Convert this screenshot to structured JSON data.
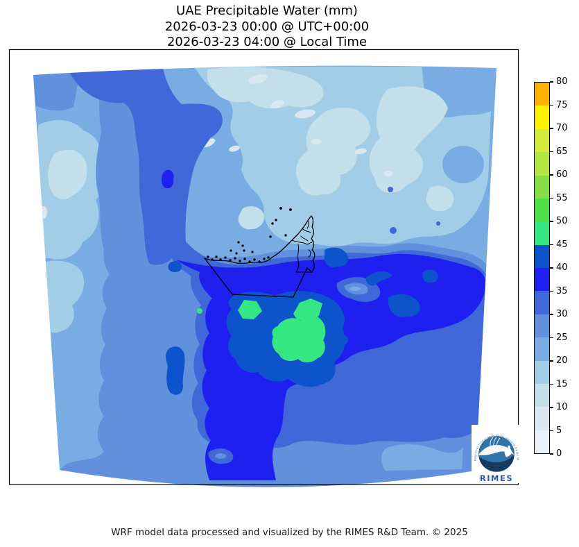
{
  "title": {
    "line1": "UAE Precipitable Water (mm)",
    "line2": "2026-03-23 00:00 @ UTC+00:00",
    "line3": "2026-03-23 04:00 @ Local Time"
  },
  "footer": {
    "caption": "WRF model data processed and visualized by the RIMES R&D Team. © 2025"
  },
  "logo": {
    "arc_text": "Regional Integrated Multi-Hazard Early Warning System",
    "name": "RIMES"
  },
  "chart_data": {
    "type": "heatmap",
    "subtype": "filled-contour-map",
    "title": "UAE Precipitable Water (mm)",
    "variable": "Precipitable Water",
    "units": "mm",
    "valid_utc": "2026-03-23 00:00 @ UTC+00:00",
    "valid_local": "2026-03-23 04:00 @ Local Time",
    "legend_position": "right",
    "colorbar": {
      "min": 0,
      "max": 80,
      "step": 5,
      "ticks": [
        0,
        5,
        10,
        15,
        20,
        25,
        30,
        35,
        40,
        45,
        50,
        55,
        60,
        65,
        70,
        75,
        80
      ],
      "levels": [
        {
          "range": "0-5",
          "color": "#EAF2F7"
        },
        {
          "range": "5-10",
          "color": "#D9E8F1"
        },
        {
          "range": "10-15",
          "color": "#C3DFE9"
        },
        {
          "range": "15-20",
          "color": "#A2CDE6"
        },
        {
          "range": "20-25",
          "color": "#7AACE4"
        },
        {
          "range": "25-30",
          "color": "#6190DC"
        },
        {
          "range": "30-35",
          "color": "#4168D8"
        },
        {
          "range": "35-40",
          "color": "#1F1FF0"
        },
        {
          "range": "40-45",
          "color": "#0C53CC"
        },
        {
          "range": "45-50",
          "color": "#35E783"
        },
        {
          "range": "50-55",
          "color": "#4FE04A"
        },
        {
          "range": "55-60",
          "color": "#87DF46"
        },
        {
          "range": "60-65",
          "color": "#B2E743"
        },
        {
          "range": "65-70",
          "color": "#D4EC3E"
        },
        {
          "range": "70-75",
          "color": "#FFF200"
        },
        {
          "range": "75-80",
          "color": "#FFB000"
        }
      ]
    },
    "map_features": {
      "outline": "United Arab Emirates coastline and land border",
      "regions": [
        {
          "area": "north (Persian Gulf / Iran coast)",
          "value_mm": "10-20"
        },
        {
          "area": "northwest corner band",
          "value_mm": "20-35"
        },
        {
          "area": "west-central vertical band",
          "value_mm": "25-35"
        },
        {
          "area": "UAE coast and central desert",
          "value_mm": "35-45"
        },
        {
          "area": "peak cells south of UAE border",
          "value_mm": "45-50"
        },
        {
          "area": "south and southeast flank",
          "value_mm": "25-35"
        }
      ]
    }
  }
}
